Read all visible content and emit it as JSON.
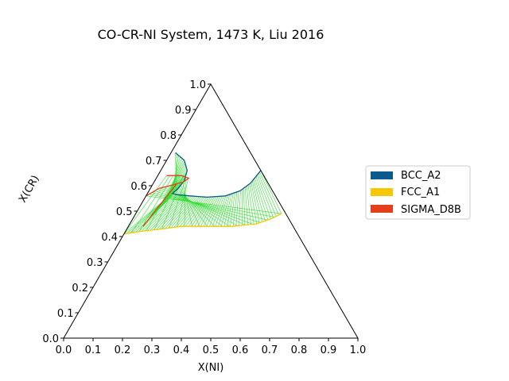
{
  "chart_data": {
    "type": "ternary",
    "title": "CO-CR-NI System, 1473 K, Liu 2016",
    "xlabel": "X(NI)",
    "ylabel": "X(CR)",
    "xlim": [
      0,
      1
    ],
    "ylim": [
      0,
      1
    ],
    "xticks": [
      "0.0",
      "0.1",
      "0.2",
      "0.3",
      "0.4",
      "0.5",
      "0.6",
      "0.7",
      "0.8",
      "0.9",
      "1.0"
    ],
    "yticks": [
      "0.0",
      "0.1",
      "0.2",
      "0.3",
      "0.4",
      "0.5",
      "0.6",
      "0.7",
      "0.8",
      "0.9",
      "1.0"
    ],
    "grid": false,
    "legend_position": "right",
    "legend": [
      {
        "label": "BCC_A2",
        "color": "#0b5a8c"
      },
      {
        "label": "FCC_A1",
        "color": "#f5c800"
      },
      {
        "label": "SIGMA_D8B",
        "color": "#e53e1a"
      }
    ],
    "tie_line_color": "#33dd33",
    "series": [
      {
        "name": "BCC_A2",
        "color": "#0b5a8c",
        "points": [
          [
            0.015,
            0.73
          ],
          [
            0.06,
            0.7
          ],
          [
            0.09,
            0.66
          ],
          [
            0.1,
            0.62
          ],
          [
            0.095,
            0.59
          ],
          [
            0.085,
            0.57
          ],
          [
            0.1,
            0.565
          ],
          [
            0.15,
            0.56
          ],
          [
            0.21,
            0.555
          ],
          [
            0.27,
            0.56
          ],
          [
            0.31,
            0.58
          ],
          [
            0.33,
            0.61
          ],
          [
            0.34,
            0.66
          ]
        ]
      },
      {
        "name": "FCC_A1",
        "color": "#f5c800",
        "points": [
          [
            0.0,
            0.41
          ],
          [
            0.05,
            0.42
          ],
          [
            0.12,
            0.43
          ],
          [
            0.18,
            0.44
          ],
          [
            0.25,
            0.44
          ],
          [
            0.35,
            0.44
          ],
          [
            0.43,
            0.45
          ],
          [
            0.47,
            0.47
          ],
          [
            0.495,
            0.49
          ]
        ]
      },
      {
        "name": "SIGMA_D8B",
        "color": "#e53e1a",
        "segments": [
          [
            [
              0.03,
              0.64
            ],
            [
              0.08,
              0.64
            ],
            [
              0.11,
              0.63
            ],
            [
              0.1,
              0.615
            ],
            [
              0.06,
              0.6
            ],
            [
              0.03,
              0.59
            ],
            [
              0.0,
              0.56
            ]
          ],
          [
            [
              0.08,
              0.605
            ],
            [
              0.07,
              0.55
            ],
            [
              0.06,
              0.5
            ],
            [
              0.05,
              0.44
            ]
          ]
        ]
      }
    ],
    "tie_lines": [
      {
        "from_series": "BCC_A2",
        "from_range": [
          0,
          0.3
        ],
        "to_series": "SIGMA_D8B",
        "count": 22
      },
      {
        "from_series": "SIGMA_D8B",
        "from_range": [
          0,
          1
        ],
        "to_series": "FCC_A1",
        "count": 22
      },
      {
        "from_series": "BCC_A2",
        "from_range": [
          0.3,
          1
        ],
        "to_series": "FCC_A1",
        "count": 55
      }
    ]
  }
}
